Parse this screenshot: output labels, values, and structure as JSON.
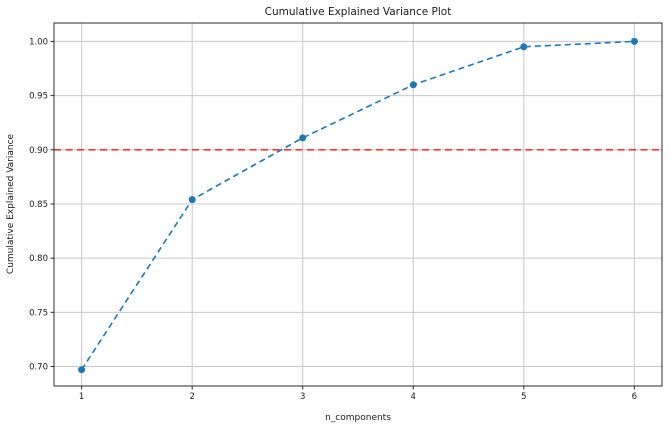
{
  "chart_data": {
    "type": "line",
    "title": "Cumulative Explained Variance Plot",
    "xlabel": "n_components",
    "ylabel": "Cumulative Explained Variance",
    "x": [
      1,
      2,
      3,
      4,
      5,
      6
    ],
    "series": [
      {
        "name": "cumulative-explained-variance",
        "values": [
          0.697,
          0.854,
          0.911,
          0.96,
          0.995,
          1.0
        ],
        "color": "#1f77b4",
        "linestyle": "dashed",
        "marker": "circle"
      }
    ],
    "threshold_line": {
      "orientation": "horizontal",
      "value": 0.9,
      "color": "#ff1414",
      "linestyle": "dashed"
    },
    "xlim": [
      0.75,
      6.25
    ],
    "ylim": [
      0.682,
      1.017
    ],
    "xticks": [
      {
        "value": 1,
        "label": "1"
      },
      {
        "value": 2,
        "label": "2"
      },
      {
        "value": 3,
        "label": "3"
      },
      {
        "value": 4,
        "label": "4"
      },
      {
        "value": 5,
        "label": "5"
      },
      {
        "value": 6,
        "label": "6"
      }
    ],
    "yticks": [
      {
        "value": 0.7,
        "label": "0.70"
      },
      {
        "value": 0.75,
        "label": "0.75"
      },
      {
        "value": 0.8,
        "label": "0.80"
      },
      {
        "value": 0.85,
        "label": "0.85"
      },
      {
        "value": 0.9,
        "label": "0.90"
      },
      {
        "value": 0.95,
        "label": "0.95"
      },
      {
        "value": 1.0,
        "label": "1.00"
      }
    ],
    "grid": true,
    "legend": "none",
    "style": {
      "grid_color": "#c8c8c8",
      "spine_color": "#2b2b2b",
      "background": "#ffffff",
      "tick_color": "#2b2b2b"
    }
  }
}
